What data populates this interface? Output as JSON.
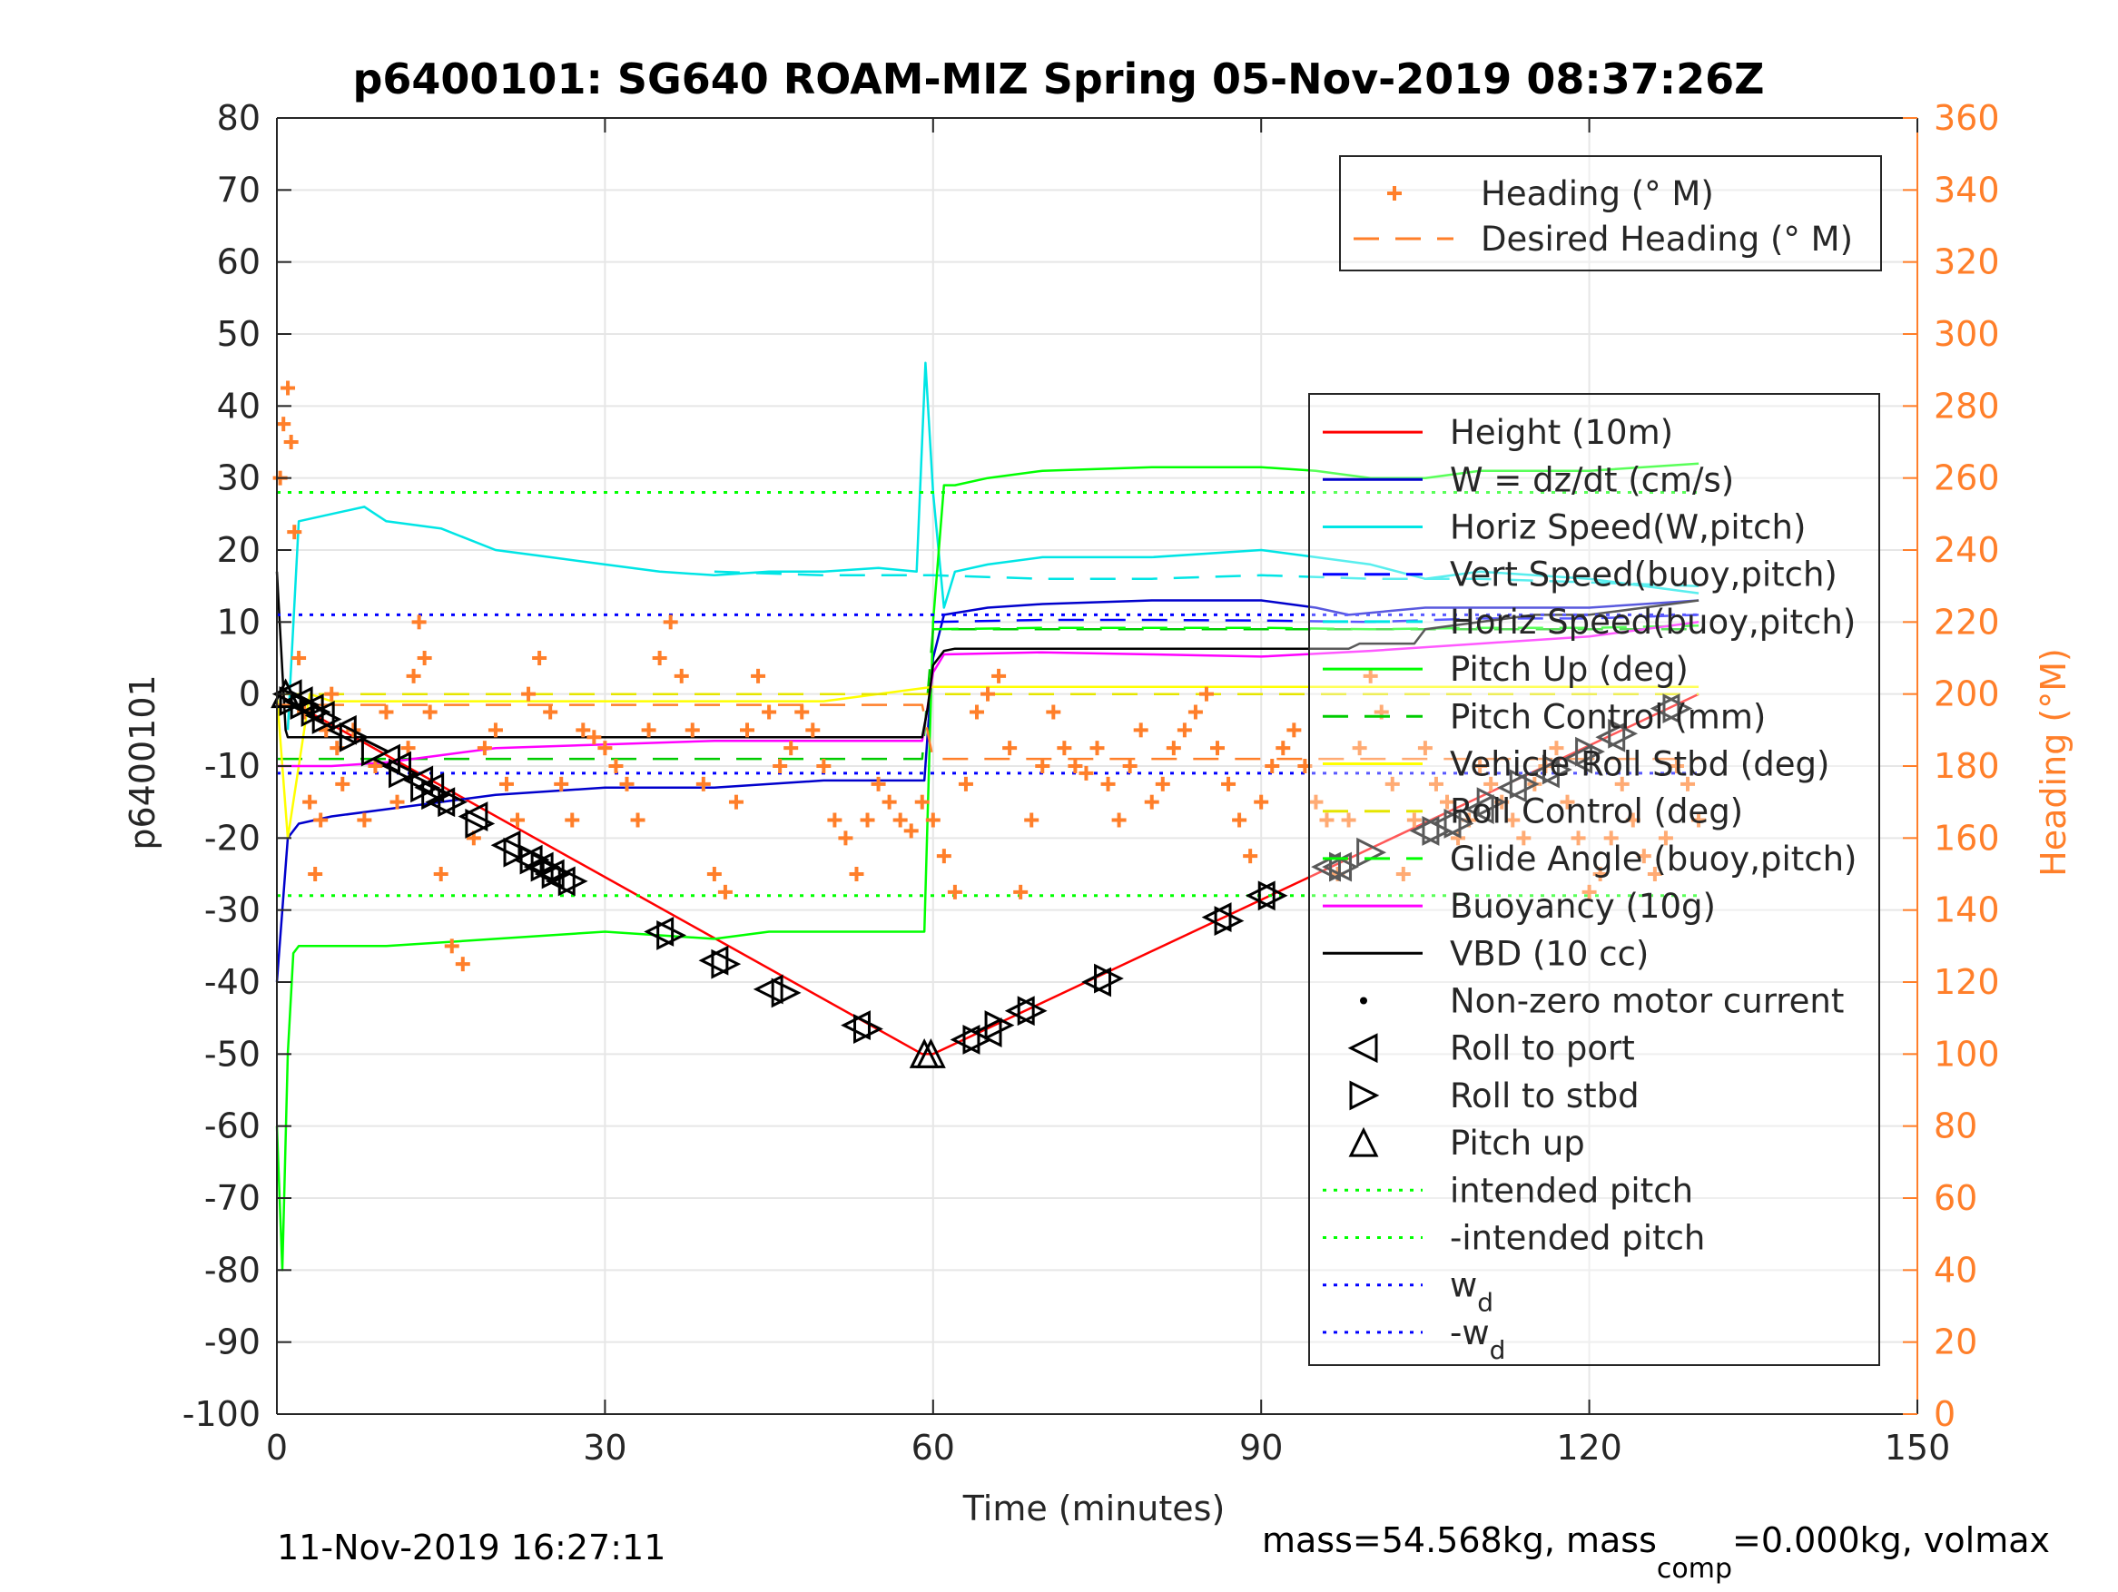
{
  "chart_data": {
    "type": "line",
    "title": "p6400101: SG640 ROAM-MIZ Spring 05-Nov-2019 08:37:26Z",
    "xlabel": "Time (minutes)",
    "ylabel": "p6400101",
    "y2label": "Heading (°M)",
    "xlim": [
      0,
      150
    ],
    "ylim": [
      -100,
      80
    ],
    "y2lim": [
      0,
      360
    ],
    "xticks": [
      0,
      30,
      60,
      90,
      120,
      150
    ],
    "yticks": [
      -100,
      -90,
      -80,
      -70,
      -60,
      -50,
      -40,
      -30,
      -20,
      -10,
      0,
      10,
      20,
      30,
      40,
      50,
      60,
      70,
      80
    ],
    "y2ticks": [
      0,
      20,
      40,
      60,
      80,
      100,
      120,
      140,
      160,
      180,
      200,
      220,
      240,
      260,
      280,
      300,
      320,
      340,
      360
    ],
    "xtick_labels": [
      "0",
      "30",
      "60",
      "90",
      "120",
      "150"
    ],
    "ytick_labels": [
      "-100",
      "-90",
      "-80",
      "-70",
      "-60",
      "-50",
      "-40",
      "-30",
      "-20",
      "-10",
      "0",
      "10",
      "20",
      "30",
      "40",
      "50",
      "60",
      "70",
      "80"
    ],
    "y2tick_labels": [
      "0",
      "20",
      "40",
      "60",
      "80",
      "100",
      "120",
      "140",
      "160",
      "180",
      "200",
      "220",
      "240",
      "260",
      "280",
      "300",
      "320",
      "340",
      "360"
    ],
    "grid": true,
    "footer_left": "11-Nov-2019 16:27:11",
    "footer_right": {
      "main": "mass=54.568kg, mass",
      "sub": "comp",
      "rest": "=0.000kg, volmax"
    },
    "legend_heading": {
      "placement": "top-right",
      "entries": [
        {
          "label": "Heading (° M)",
          "color": "#ff7f2a",
          "style": "plus"
        },
        {
          "label": "Desired Heading (° M)",
          "color": "#ff7f2a",
          "style": "dashed"
        }
      ]
    },
    "legend_main": {
      "placement": "right",
      "entries": [
        {
          "label": "Height (10m)",
          "color": "#ff0000",
          "style": "solid"
        },
        {
          "label": "W = dz/dt (cm/s)",
          "color": "#0000cc",
          "style": "solid"
        },
        {
          "label": "Horiz Speed(W,pitch)",
          "color": "#00e5e5",
          "style": "solid"
        },
        {
          "label": "Vert Speed(buoy,pitch)",
          "color": "#0000ff",
          "style": "dashed"
        },
        {
          "label": "Horiz Speed(buoy,pitch)",
          "color": "#00e5e5",
          "style": "dashed"
        },
        {
          "label": "Pitch Up (deg)",
          "color": "#00ff00",
          "style": "solid"
        },
        {
          "label": "Pitch Control (mm)",
          "color": "#00cc00",
          "style": "dashed"
        },
        {
          "label": "Vehicle Roll Stbd (deg)",
          "color": "#ffff00",
          "style": "solid"
        },
        {
          "label": "Roll Control (deg)",
          "color": "#e5e500",
          "style": "dashed"
        },
        {
          "label": "Glide Angle (buoy,pitch)",
          "color": "#00ff00",
          "style": "dashed"
        },
        {
          "label": "Buoyancy (10g)",
          "color": "#ff00ff",
          "style": "solid"
        },
        {
          "label": "VBD (10 cc)",
          "color": "#000000",
          "style": "solid"
        },
        {
          "label": "Non-zero motor current",
          "color": "#000000",
          "style": "dot"
        },
        {
          "label": "Roll to port",
          "color": "#000000",
          "style": "tri-left"
        },
        {
          "label": "Roll to stbd",
          "color": "#000000",
          "style": "tri-right"
        },
        {
          "label": "Pitch up",
          "color": "#000000",
          "style": "tri-up"
        },
        {
          "label": "intended pitch",
          "color": "#00ff00",
          "style": "dotted"
        },
        {
          "label": "-intended pitch",
          "color": "#00ff00",
          "style": "dotted"
        },
        {
          "label": "w",
          "sub": "d",
          "color": "#0000ff",
          "style": "dotted"
        },
        {
          "label": "-w",
          "sub": "d",
          "color": "#0000ff",
          "style": "dotted"
        }
      ]
    },
    "series": [
      {
        "name": "Height (10m)",
        "axis": "left",
        "color": "#ff0000",
        "style": "solid",
        "x": [
          0,
          59,
          60,
          130
        ],
        "y": [
          0,
          -50,
          -50,
          0
        ]
      },
      {
        "name": "W = dz/dt (cm/s)",
        "axis": "left",
        "color": "#0000cc",
        "style": "solid",
        "x": [
          0,
          1,
          2,
          5,
          10,
          20,
          30,
          40,
          50,
          58.5,
          59.2,
          60,
          61,
          65,
          70,
          80,
          90,
          95,
          98,
          105,
          110,
          120,
          130
        ],
        "y": [
          -40,
          -20,
          -18,
          -17,
          -16,
          -14,
          -13,
          -13,
          -12,
          -12,
          -12,
          5,
          11,
          12,
          12.5,
          13,
          13,
          12,
          11,
          12,
          12,
          12,
          13
        ]
      },
      {
        "name": "Horiz Speed(W,pitch)",
        "axis": "left",
        "color": "#00e5e5",
        "style": "solid",
        "x": [
          1,
          2,
          5,
          8,
          10,
          15,
          20,
          25,
          30,
          35,
          40,
          45,
          50,
          55,
          58.5,
          59.3,
          60,
          61,
          62,
          65,
          70,
          80,
          90,
          95,
          100,
          105,
          110,
          120,
          130
        ],
        "y": [
          -5,
          24,
          25,
          26,
          24,
          23,
          20,
          19,
          18,
          17,
          16.5,
          17,
          17,
          17.5,
          17,
          46,
          28,
          12,
          17,
          18,
          19,
          19,
          20,
          19,
          18,
          16,
          17,
          16,
          14
        ]
      },
      {
        "name": "Vert Speed(buoy,pitch)",
        "axis": "left",
        "color": "#0000ff",
        "style": "dashed",
        "x": [
          60,
          70,
          80,
          90,
          100,
          110,
          120,
          130
        ],
        "y": [
          10,
          10.3,
          10.3,
          10.2,
          10,
          10.5,
          10.5,
          11
        ]
      },
      {
        "name": "Horiz Speed(buoy,pitch)",
        "axis": "left",
        "color": "#00e5e5",
        "style": "dashed",
        "x": [
          40,
          50,
          60,
          70,
          80,
          90,
          100,
          110,
          120,
          130
        ],
        "y": [
          17,
          16.5,
          16.5,
          16,
          16,
          16.5,
          16,
          16,
          15.5,
          15
        ]
      },
      {
        "name": "Pitch Up (deg)",
        "axis": "left",
        "color": "#00ff00",
        "style": "solid",
        "x": [
          0,
          0.5,
          1,
          1.5,
          2,
          5,
          10,
          20,
          30,
          40,
          45,
          50,
          58.5,
          59.2,
          60,
          61,
          62,
          65,
          70,
          80,
          90,
          95,
          100,
          105,
          110,
          120,
          130
        ],
        "y": [
          -60,
          -80,
          -50,
          -36,
          -35,
          -35,
          -35,
          -34,
          -33,
          -34,
          -33,
          -33,
          -33,
          -33,
          10,
          29,
          29,
          30,
          31,
          31.5,
          31.5,
          31,
          30,
          30,
          31,
          31,
          32
        ]
      },
      {
        "name": "Pitch Control (mm)",
        "axis": "left",
        "color": "#00cc00",
        "style": "dashed",
        "x": [
          0,
          10,
          20,
          30,
          40,
          50,
          59,
          60,
          70,
          80,
          90,
          100,
          110,
          120,
          130
        ],
        "y": [
          -9,
          -9,
          -9,
          -9,
          -9,
          -9,
          -9,
          9,
          9,
          9,
          9,
          9,
          9,
          9,
          9
        ]
      },
      {
        "name": "Vehicle Roll Stbd (deg)",
        "axis": "left",
        "color": "#ffff00",
        "style": "solid",
        "x": [
          0,
          1,
          2,
          3,
          5,
          10,
          20,
          30,
          40,
          50,
          60,
          70,
          80,
          90,
          100,
          110,
          120,
          130
        ],
        "y": [
          0,
          -20,
          -10,
          0,
          -1,
          -1,
          -1,
          -1,
          -1,
          -1,
          1,
          1,
          1,
          1,
          1,
          1,
          1,
          1
        ]
      },
      {
        "name": "Roll Control (deg)",
        "axis": "left",
        "color": "#e5e500",
        "style": "dashed",
        "x": [
          0,
          130
        ],
        "y": [
          0,
          0
        ]
      },
      {
        "name": "Glide Angle (buoy,pitch)",
        "axis": "left",
        "color": "#00ff00",
        "style": "dashed",
        "x": [
          60,
          70,
          80,
          90,
          100,
          110,
          120,
          130
        ],
        "y": [
          9,
          9.2,
          9.2,
          9.2,
          9,
          9.2,
          9.2,
          9.5
        ]
      },
      {
        "name": "Buoyancy (10g)",
        "axis": "left",
        "color": "#ff00ff",
        "style": "solid",
        "x": [
          0,
          1,
          5,
          10,
          15,
          20,
          30,
          40,
          50,
          59,
          60,
          61,
          70,
          80,
          90,
          100,
          110,
          120,
          130
        ],
        "y": [
          -10,
          -10,
          -10,
          -9.5,
          -8.5,
          -7.5,
          -7,
          -6.5,
          -6.5,
          -6.5,
          3,
          5.5,
          5.8,
          5.5,
          5.2,
          6,
          7,
          8,
          10
        ]
      },
      {
        "name": "VBD (10 cc)",
        "axis": "left",
        "color": "#000000",
        "style": "solid",
        "x": [
          0,
          0.8,
          1,
          2,
          10,
          20,
          30,
          40,
          50,
          59,
          59.5,
          60,
          61,
          62,
          90,
          98,
          99,
          104,
          105,
          110,
          115,
          120,
          125,
          130
        ],
        "y": [
          17,
          -5,
          -6,
          -6,
          -6,
          -6,
          -6,
          -6,
          -6,
          -6,
          -2,
          4,
          6,
          6.3,
          6.3,
          6.3,
          7,
          7,
          9,
          10,
          11,
          11,
          12,
          13
        ]
      },
      {
        "name": "intended pitch",
        "axis": "left",
        "color": "#00ff00",
        "style": "dotted",
        "x": [
          0,
          130
        ],
        "y": [
          28,
          28
        ]
      },
      {
        "name": "-intended pitch",
        "axis": "left",
        "color": "#00ff00",
        "style": "dotted",
        "x": [
          0,
          130
        ],
        "y": [
          -28,
          -28
        ]
      },
      {
        "name": "wd",
        "axis": "left",
        "color": "#0000ff",
        "style": "dotted",
        "x": [
          0,
          130
        ],
        "y": [
          11,
          11
        ]
      },
      {
        "name": "-wd",
        "axis": "left",
        "color": "#0000ff",
        "style": "dotted",
        "x": [
          0,
          130
        ],
        "y": [
          -11,
          -11
        ]
      },
      {
        "name": "Desired Heading (° M)",
        "axis": "right",
        "color": "#ff7f2a",
        "style": "dashed",
        "x": [
          0,
          59,
          60,
          130
        ],
        "y": [
          197,
          197,
          182,
          182
        ]
      }
    ],
    "heading_points": {
      "x": [
        0.3,
        0.6,
        1,
        1.3,
        1.6,
        2,
        2.5,
        3,
        3.5,
        4,
        4.5,
        5,
        5.5,
        6,
        7,
        8,
        9,
        10,
        11,
        12,
        12.5,
        13,
        13.5,
        14,
        15,
        16,
        17,
        18,
        19,
        20,
        21,
        22,
        23,
        24,
        25,
        26,
        27,
        28,
        29,
        30,
        31,
        32,
        33,
        34,
        35,
        36,
        37,
        38,
        39,
        40,
        41,
        42,
        43,
        44,
        45,
        46,
        47,
        48,
        49,
        50,
        51,
        52,
        53,
        54,
        55,
        56,
        57,
        58,
        59,
        60,
        61,
        62,
        63,
        64,
        65,
        66,
        67,
        68,
        69,
        70,
        71,
        72,
        73,
        74,
        75,
        76,
        77,
        78,
        79,
        80,
        81,
        82,
        83,
        84,
        85,
        86,
        87,
        88,
        89,
        90,
        91,
        92,
        93,
        94,
        95,
        96,
        97,
        98,
        99,
        100,
        101,
        102,
        103,
        104,
        105,
        106,
        107,
        108,
        109,
        110,
        111,
        112,
        113,
        114,
        115,
        116,
        117,
        118,
        119,
        120,
        121,
        122,
        123,
        124,
        125,
        126,
        127,
        128,
        129,
        130
      ],
      "y": [
        260,
        275,
        285,
        270,
        245,
        210,
        195,
        170,
        150,
        165,
        190,
        200,
        185,
        175,
        190,
        165,
        180,
        195,
        170,
        185,
        205,
        220,
        210,
        195,
        150,
        130,
        125,
        160,
        185,
        190,
        175,
        165,
        200,
        210,
        195,
        175,
        165,
        190,
        188,
        185,
        180,
        175,
        165,
        190,
        210,
        220,
        205,
        190,
        175,
        150,
        145,
        170,
        190,
        205,
        195,
        180,
        185,
        195,
        190,
        180,
        165,
        160,
        150,
        165,
        175,
        170,
        165,
        162,
        170,
        165,
        155,
        145,
        175,
        195,
        200,
        205,
        185,
        145,
        165,
        180,
        195,
        185,
        180,
        178,
        185,
        175,
        165,
        180,
        190,
        170,
        175,
        185,
        190,
        195,
        200,
        185,
        175,
        165,
        155,
        170,
        180,
        185,
        190,
        180,
        170,
        165,
        150,
        165,
        185,
        205,
        195,
        175,
        150,
        165,
        185,
        175,
        170,
        160,
        165,
        180,
        175,
        170,
        165,
        160,
        175,
        180,
        185,
        170,
        160,
        145,
        150,
        160,
        175,
        165,
        155,
        150,
        160,
        180,
        175,
        165
      ]
    },
    "markers": {
      "roll_to_port": {
        "x": [
          1,
          2,
          3,
          4,
          6,
          10,
          11,
          13,
          14,
          15,
          18,
          21,
          23,
          24,
          25,
          26,
          35,
          40,
          45,
          53,
          63,
          65,
          68,
          75,
          86,
          90,
          96,
          97,
          105,
          107,
          110,
          113,
          116,
          119,
          122,
          127
        ],
        "y": [
          0,
          -1,
          -2,
          -3,
          -5,
          -9,
          -10,
          -12,
          -13,
          -15,
          -17,
          -21,
          -23,
          -24,
          -25,
          -26,
          -33,
          -37,
          -41,
          -46,
          -48,
          -47,
          -44,
          -40,
          -31,
          -28,
          -24,
          -24,
          -19,
          -18,
          -16,
          -13,
          -11,
          -9,
          -6,
          -2
        ]
      },
      "roll_to_stbd": {
        "x": [
          1.5,
          2.5,
          3.5,
          4.5,
          7,
          9,
          11.5,
          13.5,
          14.5,
          16,
          18.5,
          22,
          23.5,
          24.5,
          25.5,
          27,
          36,
          41,
          46.5,
          54,
          64,
          66,
          69,
          76,
          87,
          91,
          97.5,
          100,
          106,
          108,
          111,
          114,
          117,
          120,
          123,
          128
        ],
        "y": [
          -1,
          -1.5,
          -2.5,
          -3.5,
          -6,
          -8,
          -11,
          -13,
          -14,
          -15,
          -18,
          -22,
          -23,
          -24,
          -25,
          -26,
          -33.5,
          -37.5,
          -41.5,
          -46.5,
          -48,
          -46,
          -44,
          -39.5,
          -31.5,
          -28,
          -24,
          -22,
          -19,
          -18,
          -15,
          -12.5,
          -10.5,
          -8,
          -5.5,
          -2
        ]
      },
      "pitch_up": {
        "x": [
          0.8,
          59.2,
          59.8
        ],
        "y": [
          0,
          -50,
          -50
        ]
      }
    }
  }
}
